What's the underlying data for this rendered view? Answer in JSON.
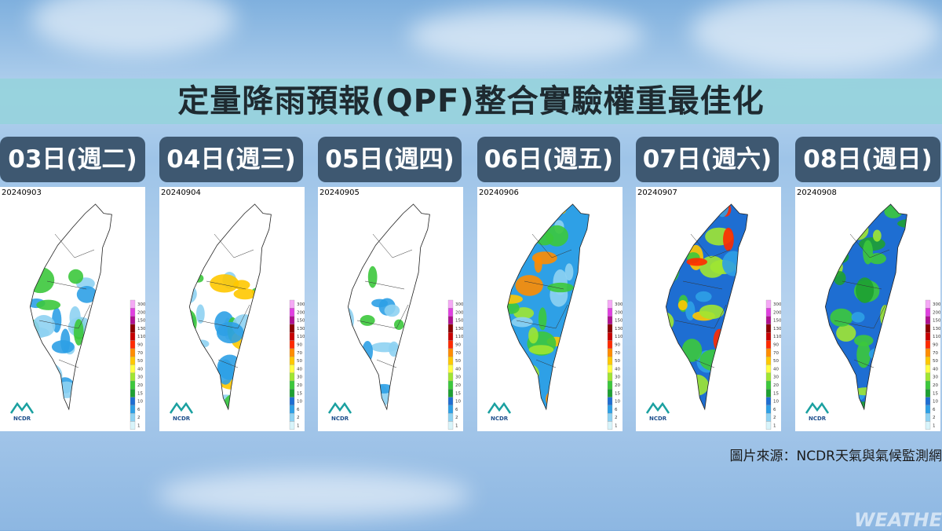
{
  "title": "定量降雨預報(QPF)整合實驗權重最佳化",
  "panels": [
    {
      "day": "03日(週二)",
      "date": "20240903"
    },
    {
      "day": "04日(週三)",
      "date": "20240904"
    },
    {
      "day": "05日(週四)",
      "date": "20240905"
    },
    {
      "day": "06日(週五)",
      "date": "20240906"
    },
    {
      "day": "07日(週六)",
      "date": "20240907"
    },
    {
      "day": "08日(週日)",
      "date": "20240908"
    }
  ],
  "legend": [
    "300",
    "200",
    "150",
    "130",
    "110",
    "90",
    "70",
    "50",
    "40",
    "30",
    "20",
    "15",
    "10",
    "6",
    "2",
    "1"
  ],
  "logo": "NCDR",
  "source": "圖片來源：NCDR天氣與氣候監測網",
  "watermark": "WEATHER"
}
